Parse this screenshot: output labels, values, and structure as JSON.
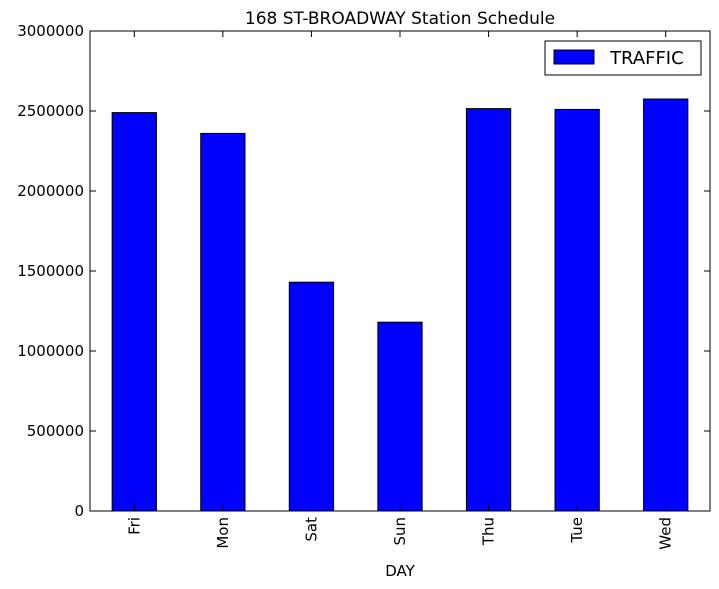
{
  "chart_data": {
    "type": "bar",
    "title": "168 ST-BROADWAY Station Schedule",
    "xlabel": "DAY",
    "ylabel": "",
    "categories": [
      "Fri",
      "Mon",
      "Sat",
      "Sun",
      "Thu",
      "Tue",
      "Wed"
    ],
    "series": [
      {
        "name": "TRAFFIC",
        "values": [
          2490000,
          2360000,
          1430000,
          1180000,
          2515000,
          2510000,
          2575000
        ],
        "color": "#0000ff"
      }
    ],
    "ylim": [
      0,
      3000000
    ],
    "yticks": [
      "0",
      "500000",
      "1000000",
      "1500000",
      "2000000",
      "2500000",
      "3000000"
    ],
    "grid": false,
    "legend_position": "top-right"
  }
}
